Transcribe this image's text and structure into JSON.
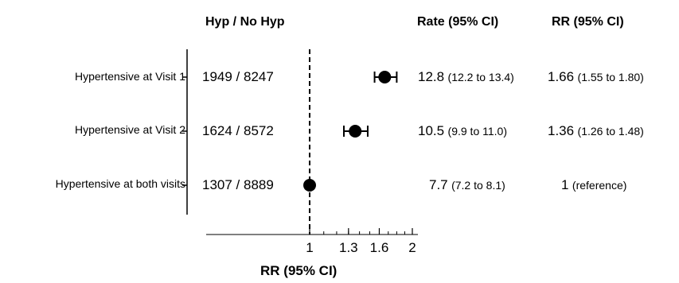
{
  "headers": {
    "counts": "Hyp / No Hyp",
    "rate": "Rate (95% CI)",
    "rr": "RR (95% CI)"
  },
  "rows": [
    {
      "label": "Hypertensive at Visit 1",
      "counts": "1949 / 8247",
      "rate_main": "12.8",
      "rate_ci": "(12.2 to 13.4)",
      "rr_main": "1.66",
      "rr_ci": "(1.55 to 1.80)"
    },
    {
      "label": "Hypertensive at Visit 2",
      "counts": "1624 / 8572",
      "rate_main": "10.5",
      "rate_ci": "(9.9 to 11.0)",
      "rr_main": "1.36",
      "rr_ci": "(1.26 to 1.48)"
    },
    {
      "label": "Hypertensive at both visits",
      "counts": "1307 / 8889",
      "rate_main": "7.7",
      "rate_ci": "(7.2 to 8.1)",
      "rr_main": "1",
      "rr_ci": "(reference)"
    }
  ],
  "chart_data": {
    "type": "scatter",
    "subtype": "forest-plot",
    "xscale": "log",
    "xlim": [
      0.5,
      2.2
    ],
    "xticks": [
      1,
      1.3,
      1.6,
      2
    ],
    "xtick_labels": [
      "1",
      "1.3",
      "1.6",
      "2"
    ],
    "xlabel": "RR (95% CI)",
    "reference_line": 1,
    "categories": [
      "Hypertensive at Visit 1",
      "Hypertensive at Visit 2",
      "Hypertensive at both visits"
    ],
    "series": [
      {
        "estimate": [
          1.66,
          1.36,
          1
        ],
        "ci_low": [
          1.55,
          1.26,
          1
        ],
        "ci_high": [
          1.8,
          1.48,
          1
        ]
      }
    ]
  }
}
